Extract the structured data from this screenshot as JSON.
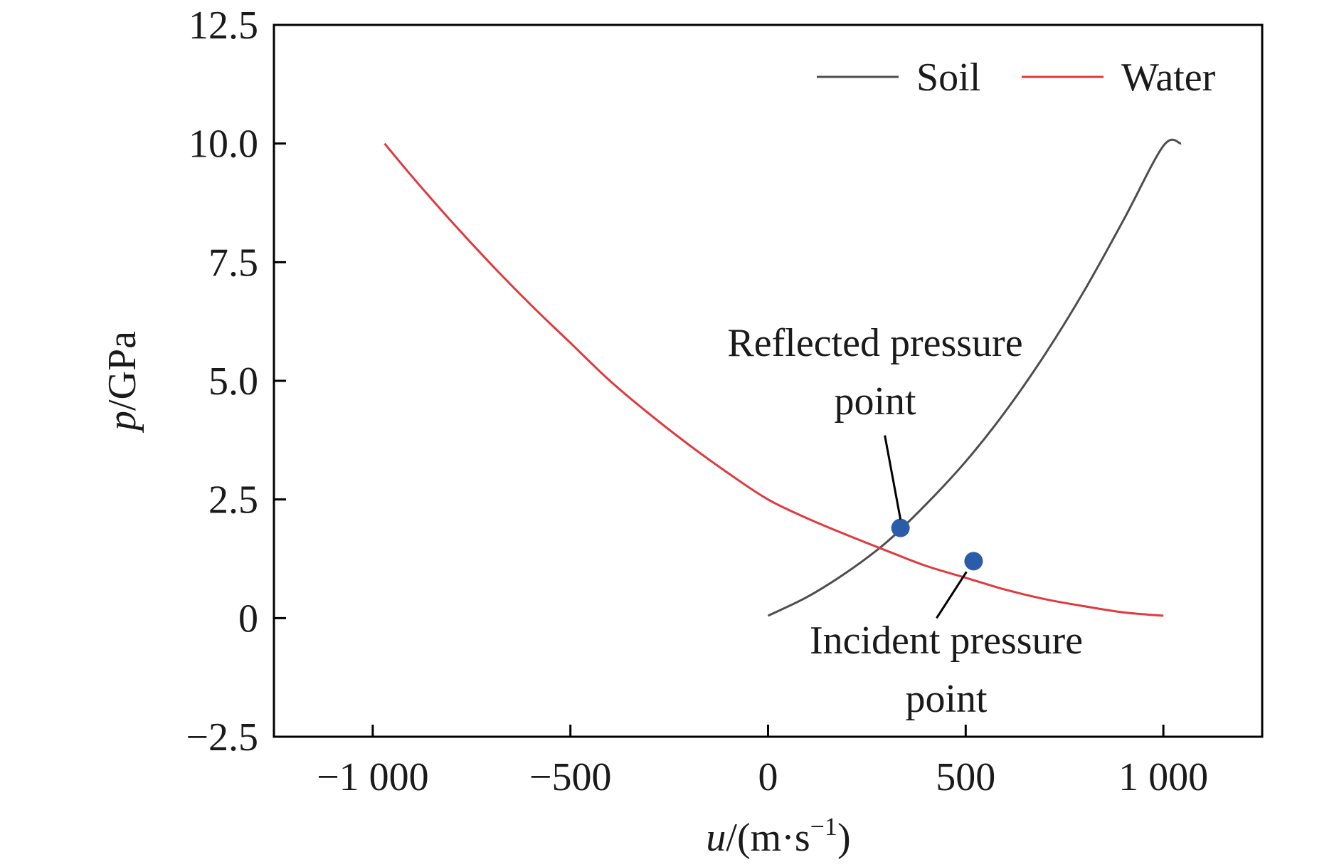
{
  "chart_data": {
    "type": "line",
    "xlabel_var": "u",
    "xlabel_unit": "/(m·s",
    "xlabel_sup": "−1",
    "xlabel_close": ")",
    "ylabel_var": "p",
    "ylabel_unit": "/GPa",
    "xlim": [
      -1250,
      1250
    ],
    "ylim": [
      -2.5,
      12.5
    ],
    "x_ticks": [
      -1000,
      -500,
      0,
      500,
      1000
    ],
    "x_tick_labels": [
      "−1 000",
      "−500",
      "0",
      "500",
      "1 000"
    ],
    "y_ticks": [
      -2.5,
      0,
      2.5,
      5.0,
      7.5,
      10.0,
      12.5
    ],
    "y_tick_labels": [
      "−2.5",
      "0",
      "2.5",
      "5.0",
      "7.5",
      "10.0",
      "12.5"
    ],
    "grid": false,
    "legend_position": "top-right",
    "series": [
      {
        "name": "Soil",
        "color": "#4d4d4d",
        "x": [
          0,
          100,
          200,
          300,
          400,
          500,
          600,
          700,
          800,
          900,
          1000,
          1045
        ],
        "y": [
          0.05,
          0.45,
          0.97,
          1.6,
          2.4,
          3.3,
          4.35,
          5.55,
          6.9,
          8.4,
          9.95,
          10.0
        ]
      },
      {
        "name": "Water",
        "color": "#e0393e",
        "x": [
          -970,
          -900,
          -800,
          -700,
          -600,
          -500,
          -400,
          -300,
          -200,
          -100,
          0,
          100,
          200,
          300,
          400,
          500,
          600,
          700,
          800,
          900,
          1000
        ],
        "y": [
          10.0,
          9.3,
          8.35,
          7.45,
          6.6,
          5.8,
          5.0,
          4.3,
          3.65,
          3.05,
          2.5,
          2.1,
          1.75,
          1.42,
          1.1,
          0.85,
          0.6,
          0.4,
          0.25,
          0.12,
          0.05
        ]
      }
    ],
    "points": [
      {
        "name": "reflected-pressure-point",
        "x": 335,
        "y": 1.9,
        "color": "#2a5caa"
      },
      {
        "name": "incident-pressure-point",
        "x": 520,
        "y": 1.2,
        "color": "#2a5caa"
      }
    ],
    "annotations": [
      {
        "lines": [
          "Reflected pressure",
          "point"
        ]
      },
      {
        "lines": [
          "Incident pressure",
          "point"
        ]
      }
    ]
  }
}
